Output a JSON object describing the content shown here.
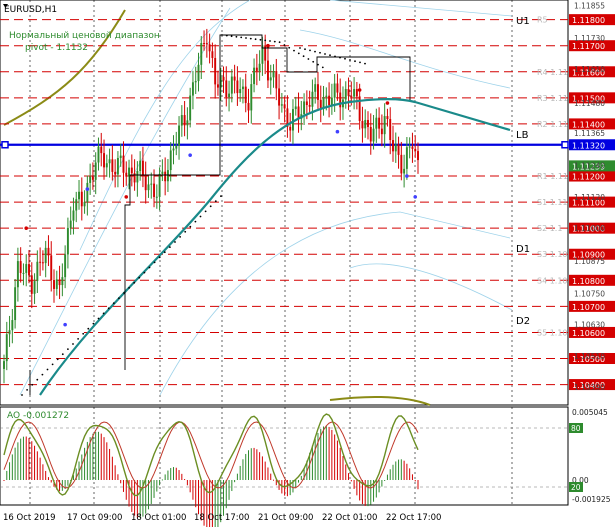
{
  "chart_data": {
    "type": "candlestick",
    "symbol_title": "EURUSD,H1",
    "indicator_label": "Нормальный ценовой диапазон",
    "pivot_label": "pivot - 1.1132",
    "current_price": "1.11239",
    "ylim": [
      1.1036,
      1.1186
    ],
    "price_ticks": [
      "1.11855",
      "1.11730",
      "1.11610",
      "1.11480",
      "1.11365",
      "1.11240",
      "1.11120",
      "1.11000",
      "1.10875",
      "1.10750",
      "1.10630",
      "1.10510",
      "1.10390"
    ],
    "levels": [
      {
        "price": 1.118,
        "label": "1.11800",
        "zone": "R5"
      },
      {
        "price": 1.117,
        "label": "1.11700",
        "zone": ""
      },
      {
        "price": 1.116,
        "label": "1.11600",
        "zone": "R4 1.11"
      },
      {
        "price": 1.115,
        "label": "1.11500",
        "zone": "R3 1.11"
      },
      {
        "price": 1.114,
        "label": "1.11400",
        "zone": "R2 1.11"
      },
      {
        "price": 1.112,
        "label": "1.11200",
        "zone": "R1 1.11"
      },
      {
        "price": 1.111,
        "label": "1.11100",
        "zone": "S1 1.11"
      },
      {
        "price": 1.11,
        "label": "1.11000",
        "zone": "S2 1.1"
      },
      {
        "price": 1.109,
        "label": "1.10900",
        "zone": "S3 1.10"
      },
      {
        "price": 1.108,
        "label": "1.10800",
        "zone": "S4 1.10"
      },
      {
        "price": 1.107,
        "label": "1.10700",
        "zone": ""
      },
      {
        "price": 1.106,
        "label": "1.10600",
        "zone": "S5 1.10"
      },
      {
        "price": 1.105,
        "label": "1.10500",
        "zone": ""
      },
      {
        "price": 1.104,
        "label": "1.10400",
        "zone": ""
      }
    ],
    "pivot": {
      "price": 1.1132,
      "label": "1.11320"
    },
    "side_labels": [
      "U1",
      "LB",
      "D1",
      "D2"
    ],
    "oscillator": {
      "label": "AO -0.001272",
      "ticks": [
        "0.005045",
        "80",
        "0.00",
        "20",
        "-0.001925"
      ]
    },
    "time_labels": [
      "16 Oct 2019",
      "17 Oct 09:00",
      "18 Oct 01:00",
      "18 Oct 17:00",
      "21 Oct 09:00",
      "22 Oct 01:00",
      "22 Oct 17:00"
    ]
  }
}
